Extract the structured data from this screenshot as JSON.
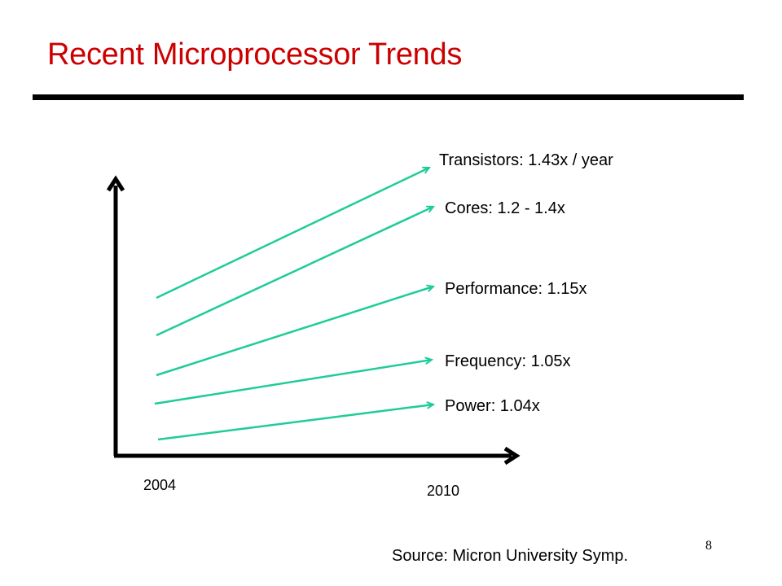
{
  "slide": {
    "title": "Recent Microprocessor Trends",
    "page_number": "8",
    "source": "Source: Micron University Symp."
  },
  "axis": {
    "x_start_label": "2004",
    "x_end_label": "2010"
  },
  "trends": [
    {
      "label": "Transistors: 1.43x / year"
    },
    {
      "label": "Cores: 1.2 - 1.4x"
    },
    {
      "label": "Performance: 1.15x"
    },
    {
      "label": "Frequency: 1.05x"
    },
    {
      "label": "Power: 1.04x"
    }
  ],
  "colors": {
    "title": "#cc0000",
    "trend_line": "#1fcc99",
    "axis": "#000000"
  }
}
